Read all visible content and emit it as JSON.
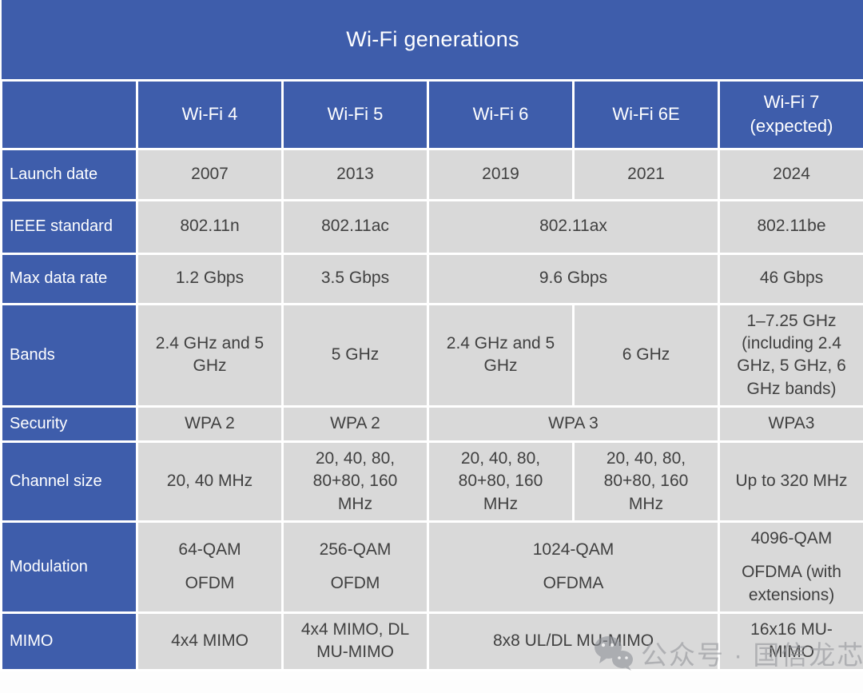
{
  "chart_data": {
    "type": "table",
    "title": "Wi-Fi generations",
    "columns": [
      "Wi-Fi 4",
      "Wi-Fi 5",
      "Wi-Fi 6",
      "Wi-Fi 6E",
      "Wi-Fi 7 (expected)"
    ],
    "row_labels": [
      "Launch date",
      "IEEE standard",
      "Max data rate",
      "Bands",
      "Security",
      "Channel size",
      "Modulation",
      "MIMO"
    ],
    "rows": [
      {
        "label": "Launch date",
        "cells": [
          {
            "text": "2007",
            "span": 1
          },
          {
            "text": "2013",
            "span": 1
          },
          {
            "text": "2019",
            "span": 1
          },
          {
            "text": "2021",
            "span": 1
          },
          {
            "text": "2024",
            "span": 1
          }
        ]
      },
      {
        "label": "IEEE standard",
        "cells": [
          {
            "text": "802.11n",
            "span": 1
          },
          {
            "text": "802.11ac",
            "span": 1
          },
          {
            "text": "802.11ax",
            "span": 2
          },
          {
            "text": "802.11be",
            "span": 1
          }
        ]
      },
      {
        "label": "Max data rate",
        "cells": [
          {
            "text": "1.2 Gbps",
            "span": 1
          },
          {
            "text": "3.5 Gbps",
            "span": 1
          },
          {
            "text": "9.6 Gbps",
            "span": 2
          },
          {
            "text": "46 Gbps",
            "span": 1
          }
        ]
      },
      {
        "label": "Bands",
        "cells": [
          {
            "text": "2.4 GHz and 5 GHz",
            "span": 1
          },
          {
            "text": "5 GHz",
            "span": 1
          },
          {
            "text": "2.4 GHz and 5 GHz",
            "span": 1
          },
          {
            "text": "6 GHz",
            "span": 1
          },
          {
            "text": "1–7.25 GHz (including 2.4 GHz, 5 GHz, 6 GHz bands)",
            "span": 1
          }
        ]
      },
      {
        "label": "Security",
        "cells": [
          {
            "text": "WPA 2",
            "span": 1
          },
          {
            "text": "WPA 2",
            "span": 1
          },
          {
            "text": "WPA 3",
            "span": 2
          },
          {
            "text": "WPA3",
            "span": 1
          }
        ]
      },
      {
        "label": "Channel size",
        "cells": [
          {
            "text": "20, 40 MHz",
            "span": 1
          },
          {
            "text": "20, 40, 80, 80+80, 160 MHz",
            "span": 1
          },
          {
            "text": "20, 40, 80, 80+80, 160 MHz",
            "span": 1
          },
          {
            "text": "20, 40, 80, 80+80, 160 MHz",
            "span": 1
          },
          {
            "text": "Up to 320 MHz",
            "span": 1
          }
        ]
      },
      {
        "label": "Modulation",
        "cells": [
          {
            "lines": [
              "64-QAM",
              "OFDM"
            ],
            "span": 1
          },
          {
            "lines": [
              "256-QAM",
              "OFDM"
            ],
            "span": 1
          },
          {
            "lines": [
              "1024-QAM",
              "OFDMA"
            ],
            "span": 2
          },
          {
            "lines": [
              "4096-QAM",
              "OFDMA (with extensions)"
            ],
            "span": 1
          }
        ]
      },
      {
        "label": "MIMO",
        "cells": [
          {
            "text": "4x4 MIMO",
            "span": 1
          },
          {
            "text": "4x4 MIMO, DL MU-MIMO",
            "span": 1
          },
          {
            "text": "8x8 UL/DL MU-MIMO",
            "span": 2
          },
          {
            "text": "16x16 MU-MIMO",
            "span": 1
          }
        ]
      }
    ],
    "colors": {
      "header_blue": "#3e5dab",
      "cell_gray": "#d9d9d9",
      "data_text": "#404040",
      "header_text": "#ffffff",
      "grid_line": "#ffffff"
    }
  },
  "watermark": {
    "icon": "wechat-icon",
    "text": "公众号 · 国信龙芯"
  }
}
